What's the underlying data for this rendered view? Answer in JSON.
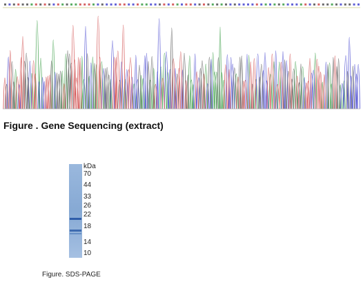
{
  "sequencing": {
    "caption": "Figure . Gene Sequencing (extract)",
    "trace_colors": {
      "A": "#3fa04a",
      "C": "#4a4ad0",
      "G": "#555555",
      "T": "#d04a4a"
    }
  },
  "sds_page": {
    "caption": "Figure. SDS-PAGE",
    "unit_label": "kDa",
    "markers": [
      "70",
      "44",
      "33",
      "26",
      "22",
      "18",
      "14",
      "10"
    ],
    "lane_color": "#8fb0d8",
    "band_color": "#2a5aa8"
  }
}
